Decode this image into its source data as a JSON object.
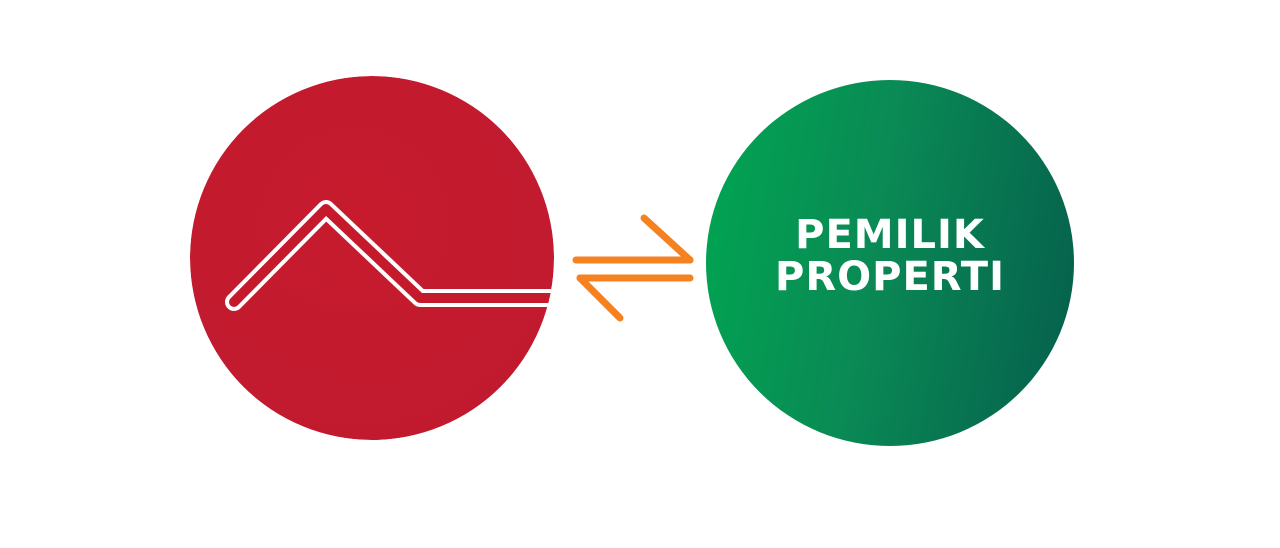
{
  "logos": {
    "left": {
      "icon": "roof-house-icon",
      "color": "#c41a2c"
    },
    "exchange": {
      "icon": "swap-arrows-icon",
      "color": "#f58220"
    },
    "right": {
      "line1": "PEMILIK",
      "line2": "PROPERTI",
      "gradient_start": "#00a651",
      "gradient_end": "#055e4c",
      "text_color": "#ffffff"
    }
  }
}
